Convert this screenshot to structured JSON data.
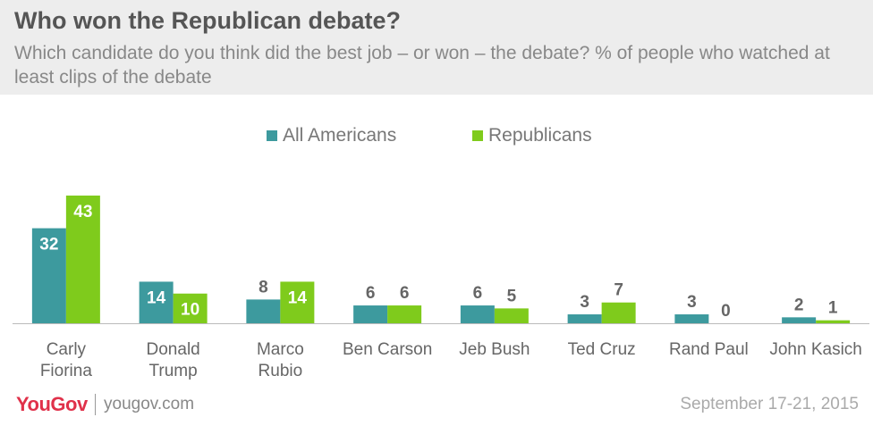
{
  "header": {
    "title": "Who won the Republican debate?",
    "subtitle": "Which candidate do you think did the best job – or won – the debate? % of people who watched at least clips of the debate"
  },
  "footer": {
    "logo": "YouGov",
    "url": "yougov.com",
    "date": "September 17-21, 2015"
  },
  "colors": {
    "all_americans": "#3d9a9e",
    "republicans": "#7fcb1c"
  },
  "chart_data": {
    "type": "bar",
    "title": "Who won the Republican debate?",
    "categories": [
      [
        "Carly",
        "Fiorina"
      ],
      [
        "Donald",
        "Trump"
      ],
      [
        "Marco",
        "Rubio"
      ],
      [
        "Ben Carson"
      ],
      [
        "Jeb Bush"
      ],
      [
        "Ted Cruz"
      ],
      [
        "Rand Paul"
      ],
      [
        "John Kasich"
      ]
    ],
    "series": [
      {
        "name": "All Americans",
        "values": [
          32,
          14,
          8,
          6,
          6,
          3,
          3,
          2
        ]
      },
      {
        "name": "Republicans",
        "values": [
          43,
          10,
          14,
          6,
          5,
          7,
          0,
          1
        ]
      }
    ],
    "ylim": [
      0,
      43
    ],
    "grid": false,
    "legend": "top-center"
  }
}
